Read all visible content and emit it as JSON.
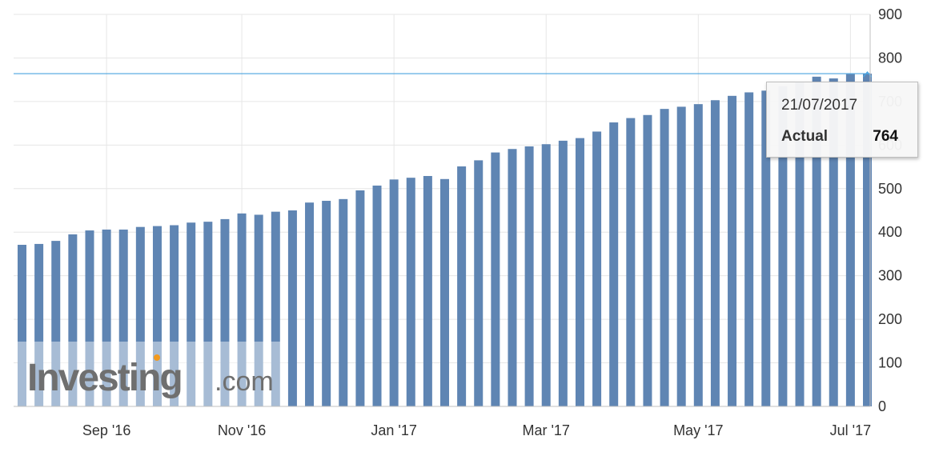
{
  "chart_data": {
    "type": "bar",
    "ylim": [
      0,
      900
    ],
    "y_ticks": [
      "0",
      "100",
      "200",
      "300",
      "400",
      "500",
      "600",
      "700",
      "800",
      "900"
    ],
    "x_tick_labels": [
      "Sep '16",
      "Nov '16",
      "Jan '17",
      "Mar '17",
      "May '17",
      "Jul '17"
    ],
    "x_tick_label_bar_index": [
      5,
      13,
      22,
      31,
      40,
      49
    ],
    "grid": true,
    "series": [
      {
        "values": [
          371,
          373,
          380,
          395,
          404,
          406,
          406,
          412,
          414,
          416,
          422,
          424,
          430,
          443,
          440,
          447,
          450,
          468,
          472,
          476,
          496,
          507,
          521,
          525,
          529,
          522,
          551,
          565,
          583,
          591,
          597,
          602,
          610,
          616,
          631,
          652,
          662,
          669,
          683,
          688,
          694,
          703,
          713,
          721,
          725,
          735,
          744,
          757,
          753,
          763,
          764
        ]
      }
    ],
    "reference_line_value": 764,
    "colors": {
      "bar": "#5f85b3",
      "grid": "#e6e6e6",
      "reference_line": "#4aa3df",
      "axis": "#c0c0c0"
    }
  },
  "tooltip": {
    "date": "21/07/2017",
    "label": "Actual",
    "value": "764"
  },
  "watermark": {
    "brand": "Investing",
    "suffix": ".com"
  }
}
